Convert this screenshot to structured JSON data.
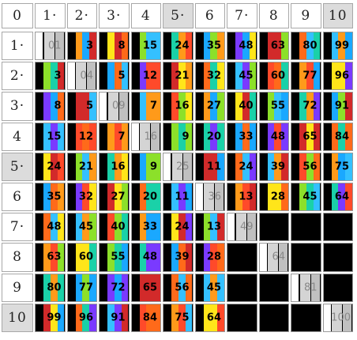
{
  "corner_label": "0",
  "col_headers": [
    "1·",
    "2·",
    "3·",
    "4",
    "5·",
    "6",
    "7·",
    "8",
    "9",
    "10"
  ],
  "row_headers": [
    "1·",
    "2·",
    "3·",
    "4",
    "5·",
    "6",
    "7·",
    "8",
    "9",
    "10"
  ],
  "shaded_headers": [
    5,
    10
  ],
  "palette": [
    "#ff4a2a",
    "#ff9a1a",
    "#ffe51a",
    "#8ce02a",
    "#1ad1a8",
    "#1aa8ff",
    "#7a3aff",
    "#d22a2a",
    "#ff6a1a",
    "#34c0ff"
  ],
  "cells": [
    [
      "01",
      "3",
      "8",
      "15",
      "24",
      "35",
      "48",
      "63",
      "80",
      "99"
    ],
    [
      "3",
      "04",
      "5",
      "12",
      "21",
      "32",
      "45",
      "60",
      "77",
      "96"
    ],
    [
      "8",
      "5",
      "09",
      "7",
      "16",
      "27",
      "40",
      "55",
      "72",
      "91"
    ],
    [
      "15",
      "12",
      "7",
      "16",
      "9",
      "20",
      "33",
      "48",
      "65",
      "84"
    ],
    [
      "24",
      "21",
      "16",
      "9",
      "25",
      "11",
      "24",
      "39",
      "56",
      "75"
    ],
    [
      "35",
      "32",
      "27",
      "20",
      "11",
      "36",
      "13",
      "28",
      "45",
      "64"
    ],
    [
      "48",
      "45",
      "40",
      "33",
      "24",
      "13",
      "49",
      "",
      "",
      ""
    ],
    [
      "63",
      "60",
      "55",
      "48",
      "39",
      "28",
      "",
      "64",
      "",
      ""
    ],
    [
      "80",
      "77",
      "72",
      "65",
      "56",
      "45",
      "",
      "",
      "81",
      ""
    ],
    [
      "99",
      "96",
      "91",
      "84",
      "75",
      "64",
      "",
      "",
      "",
      "100"
    ]
  ]
}
